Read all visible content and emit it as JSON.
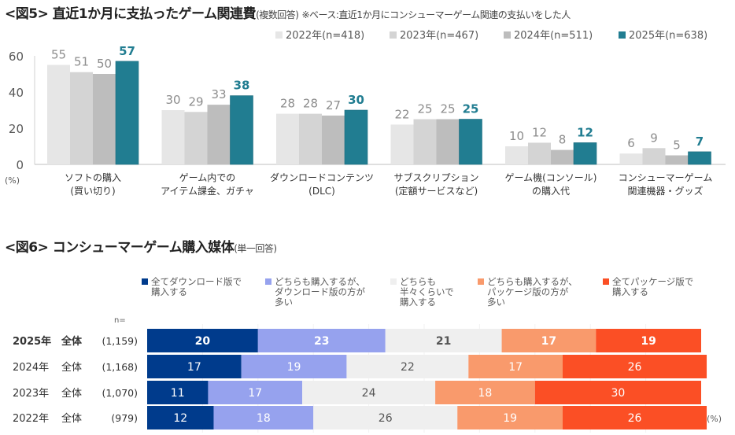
{
  "figure5": {
    "title_main": "<図5> 直近1か月に支払ったゲーム関連費",
    "title_sub": "(複数回答)",
    "title_note": "※ベース:直近1か月にコンシューマーゲーム関連の支払いをした人"
  },
  "figure6": {
    "title_main": "<図6> コンシューマーゲーム購入媒体",
    "title_sub": "(単一回答)"
  },
  "chart_data": [
    {
      "type": "bar",
      "title": "<図5> 直近1か月に支払ったゲーム関連費(複数回答)",
      "xlabel": "",
      "ylabel": "(%)",
      "ylim": [
        0,
        60
      ],
      "yticks": [
        0,
        20,
        40,
        60
      ],
      "grid": false,
      "legend_position": "top-right",
      "categories": [
        [
          "ソフトの購入",
          "(買い切り)"
        ],
        [
          "ゲーム内での",
          "アイテム課金、ガチャ"
        ],
        [
          "ダウンロードコンテンツ",
          "(DLC)"
        ],
        [
          "サブスクリプション",
          "(定額サービスなど)"
        ],
        [
          "ゲーム機(コンソール)",
          "の購入代"
        ],
        [
          "コンシューマーゲーム",
          "関連機器・グッズ"
        ]
      ],
      "series": [
        {
          "name": "2022年(n=418)",
          "color": "#e6e6e6",
          "values": [
            55,
            30,
            28,
            22,
            10,
            6
          ]
        },
        {
          "name": "2023年(n=467)",
          "color": "#d4d4d4",
          "values": [
            51,
            29,
            28,
            25,
            12,
            9
          ]
        },
        {
          "name": "2024年(n=511)",
          "color": "#bdbdbd",
          "values": [
            50,
            33,
            27,
            25,
            8,
            5
          ]
        },
        {
          "name": "2025年(n=638)",
          "color": "#217d91",
          "values": [
            57,
            38,
            30,
            25,
            12,
            7
          ]
        }
      ],
      "label_color_gray": "#8c8c8c",
      "label_color_highlight": "#217d91"
    },
    {
      "type": "bar",
      "orientation": "horizontal-stacked-100",
      "title": "<図6> コンシューマーゲーム購入媒体(単一回答)",
      "unit_label": "(%)",
      "n_header": "n=",
      "legend_position": "top",
      "categories": [
        {
          "year": "2025年",
          "group": "全体",
          "n": "(1,159)",
          "bold": true
        },
        {
          "year": "2024年",
          "group": "全体",
          "n": "(1,168)",
          "bold": false
        },
        {
          "year": "2023年",
          "group": "全体",
          "n": "(1,070)",
          "bold": false
        },
        {
          "year": "2022年",
          "group": "全体",
          "n": "(979)",
          "bold": false
        }
      ],
      "series": [
        {
          "name": [
            "全てダウンロード版で",
            "購入する"
          ],
          "color": "#003b8c",
          "text_color": "#ffffff",
          "values": [
            20,
            17,
            11,
            12
          ]
        },
        {
          "name": [
            "どちらも購入するが、",
            "ダウンロード版の方が",
            "多い"
          ],
          "color": "#96a2ee",
          "text_color": "#ffffff",
          "values": [
            23,
            19,
            17,
            18
          ]
        },
        {
          "name": [
            "どちらも",
            "半々くらいで",
            "購入する"
          ],
          "color": "#efefef",
          "text_color": "#555555",
          "values": [
            21,
            22,
            24,
            26
          ]
        },
        {
          "name": [
            "どちらも購入するが、",
            "パッケージ版の方が",
            "多い"
          ],
          "color": "#f99a6c",
          "text_color": "#ffffff",
          "values": [
            17,
            17,
            18,
            19
          ]
        },
        {
          "name": [
            "全てパッケージ版で",
            "購入する"
          ],
          "color": "#fb4f25",
          "text_color": "#ffffff",
          "values": [
            19,
            26,
            30,
            26
          ]
        }
      ]
    }
  ]
}
